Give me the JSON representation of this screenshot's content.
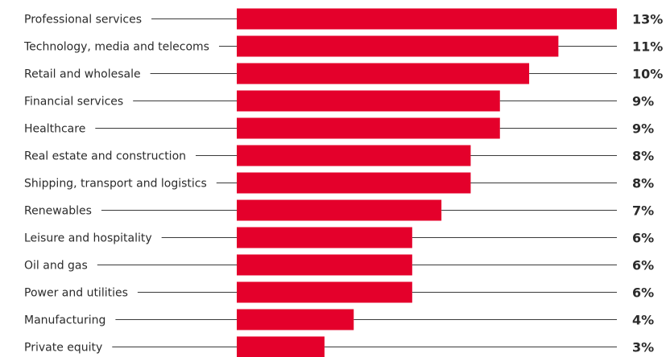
{
  "chart_data": {
    "type": "bar",
    "orientation": "horizontal",
    "title": "",
    "xlabel": "",
    "ylabel": "",
    "value_suffix": "%",
    "grid": false,
    "legend": "none",
    "bar_color": "#e4002b",
    "categories": [
      "Professional services",
      "Technology, media and telecoms",
      "Retail and wholesale",
      "Financial services",
      "Healthcare",
      "Real estate and construction",
      "Shipping, transport and logistics",
      "Renewables",
      "Leisure and hospitality",
      "Oil and gas",
      "Power and utilities",
      "Manufacturing",
      "Private equity"
    ],
    "values": [
      13,
      11,
      10,
      9,
      9,
      8,
      8,
      7,
      6,
      6,
      6,
      4,
      3
    ],
    "value_labels": [
      "13%",
      "11%",
      "10%",
      "9%",
      "9%",
      "8%",
      "8%",
      "7%",
      "6%",
      "6%",
      "6%",
      "4%",
      "3%"
    ],
    "xlim": [
      0,
      13
    ]
  }
}
